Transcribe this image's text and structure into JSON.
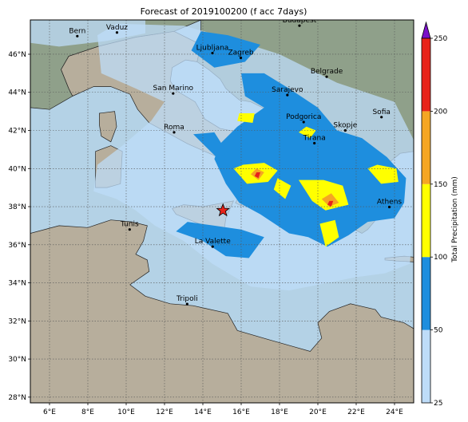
{
  "title": "Forecast of 2019100200 (f acc 7days)",
  "map": {
    "lon_range": [
      5,
      25
    ],
    "lat_range": [
      27.7,
      47.8
    ],
    "lon_ticks": [
      {
        "value": 6,
        "label": "6°E"
      },
      {
        "value": 8,
        "label": "8°E"
      },
      {
        "value": 10,
        "label": "10°E"
      },
      {
        "value": 12,
        "label": "12°E"
      },
      {
        "value": 14,
        "label": "14°E"
      },
      {
        "value": 16,
        "label": "16°E"
      },
      {
        "value": 18,
        "label": "18°E"
      },
      {
        "value": 20,
        "label": "20°E"
      },
      {
        "value": 22,
        "label": "22°E"
      },
      {
        "value": 24,
        "label": "24°E"
      }
    ],
    "lat_ticks": [
      {
        "value": 28,
        "label": "28°N"
      },
      {
        "value": 30,
        "label": "30°N"
      },
      {
        "value": 32,
        "label": "32°N"
      },
      {
        "value": 34,
        "label": "34°N"
      },
      {
        "value": 36,
        "label": "36°N"
      },
      {
        "value": 38,
        "label": "38°N"
      },
      {
        "value": 40,
        "label": "40°N"
      },
      {
        "value": 42,
        "label": "42°N"
      },
      {
        "value": 44,
        "label": "44°N"
      },
      {
        "value": 46,
        "label": "46°N"
      }
    ],
    "grid": true,
    "colors": {
      "sea": "#b4d2e6",
      "land": "#b7ae9c",
      "land_north": "#8fa08a",
      "border": "#222222"
    },
    "cities": [
      {
        "name": "Bern",
        "lon": 7.45,
        "lat": 46.95
      },
      {
        "name": "Vaduz",
        "lon": 9.52,
        "lat": 47.14
      },
      {
        "name": "Budapest",
        "lon": 19.04,
        "lat": 47.5
      },
      {
        "name": "Ljubljana",
        "lon": 14.5,
        "lat": 46.06
      },
      {
        "name": "Zagreb",
        "lon": 15.98,
        "lat": 45.81
      },
      {
        "name": "Belgrade",
        "lon": 20.46,
        "lat": 44.82
      },
      {
        "name": "San Marino",
        "lon": 12.45,
        "lat": 43.94
      },
      {
        "name": "Sarajevo",
        "lon": 18.41,
        "lat": 43.86
      },
      {
        "name": "Sofia",
        "lon": 23.32,
        "lat": 42.7
      },
      {
        "name": "Podgorica",
        "lon": 19.26,
        "lat": 42.44
      },
      {
        "name": "Skopje",
        "lon": 21.43,
        "lat": 42.0
      },
      {
        "name": "Roma",
        "lon": 12.5,
        "lat": 41.9
      },
      {
        "name": "Tirana",
        "lon": 19.82,
        "lat": 41.33
      },
      {
        "name": "Athens",
        "lon": 23.73,
        "lat": 37.98
      },
      {
        "name": "Tunis",
        "lon": 10.18,
        "lat": 36.8
      },
      {
        "name": "La Valette",
        "lon": 14.51,
        "lat": 35.9
      },
      {
        "name": "Tripoli",
        "lon": 13.18,
        "lat": 32.89
      }
    ],
    "marker": {
      "lon": 15.05,
      "lat": 37.8,
      "color": "#e8231a"
    }
  },
  "colorbar": {
    "label": "Total Precipitation (mm)",
    "levels": [
      25,
      50,
      100,
      150,
      200,
      250
    ],
    "colors": [
      "#bedcf8",
      "#1e8ede",
      "#ffff00",
      "#f5a623",
      "#e8231a"
    ],
    "extend_color": "#7a10c8"
  },
  "precip_regions": [
    {
      "level": 1,
      "points": [
        [
          8.3,
          38.8
        ],
        [
          9.5,
          38.4
        ],
        [
          10.5,
          37.8
        ],
        [
          11.5,
          37.0
        ],
        [
          13.0,
          36.2
        ],
        [
          14.5,
          35.0
        ],
        [
          16.5,
          33.8
        ],
        [
          18.5,
          33.6
        ],
        [
          20.5,
          34.0
        ],
        [
          22.0,
          34.3
        ],
        [
          23.5,
          34.5
        ],
        [
          24.8,
          35.0
        ],
        [
          24.9,
          36.3
        ],
        [
          25.0,
          41.5
        ],
        [
          24.0,
          43.5
        ],
        [
          21.0,
          44.5
        ],
        [
          18.0,
          46.0
        ],
        [
          15.5,
          46.8
        ],
        [
          13.0,
          47.5
        ],
        [
          9.5,
          47.6
        ],
        [
          8.5,
          47.0
        ],
        [
          8.7,
          45.0
        ],
        [
          10.5,
          44.2
        ],
        [
          12.0,
          43.5
        ],
        [
          11.3,
          42.5
        ],
        [
          9.8,
          41.2
        ],
        [
          8.5,
          40.2
        ]
      ]
    },
    {
      "level": 1,
      "points": [
        [
          5.0,
          47.8
        ],
        [
          11.0,
          47.8
        ],
        [
          11.0,
          47.1
        ],
        [
          9.0,
          46.7
        ],
        [
          6.5,
          46.4
        ],
        [
          5.0,
          46.6
        ]
      ]
    },
    {
      "level": 2,
      "points": [
        [
          14.6,
          40.5
        ],
        [
          15.2,
          39.2
        ],
        [
          15.9,
          38.2
        ],
        [
          17.0,
          37.6
        ],
        [
          18.5,
          36.6
        ],
        [
          19.5,
          36.4
        ],
        [
          20.5,
          35.9
        ],
        [
          21.6,
          36.5
        ],
        [
          22.6,
          37.2
        ],
        [
          24.0,
          37.4
        ],
        [
          24.5,
          38.2
        ],
        [
          24.6,
          39.5
        ],
        [
          23.6,
          40.6
        ],
        [
          22.3,
          41.6
        ],
        [
          21.0,
          42.0
        ],
        [
          20.0,
          43.2
        ],
        [
          18.5,
          44.2
        ],
        [
          17.2,
          45.0
        ],
        [
          16.0,
          45.0
        ],
        [
          16.2,
          43.8
        ],
        [
          17.2,
          43.2
        ],
        [
          15.8,
          42.2
        ],
        [
          14.9,
          41.3
        ]
      ]
    },
    {
      "level": 2,
      "points": [
        [
          12.6,
          36.7
        ],
        [
          14.0,
          36.2
        ],
        [
          15.2,
          35.4
        ],
        [
          16.4,
          35.3
        ],
        [
          17.2,
          36.4
        ],
        [
          16.0,
          36.8
        ],
        [
          14.6,
          37.0
        ],
        [
          13.2,
          37.2
        ]
      ]
    },
    {
      "level": 2,
      "points": [
        [
          13.4,
          46.2
        ],
        [
          14.6,
          45.3
        ],
        [
          16.2,
          45.6
        ],
        [
          17.0,
          46.5
        ],
        [
          15.3,
          47.0
        ],
        [
          13.9,
          47.2
        ]
      ]
    },
    {
      "level": 2,
      "points": [
        [
          13.5,
          41.8
        ],
        [
          14.7,
          40.6
        ],
        [
          15.3,
          40.8
        ],
        [
          14.6,
          41.9
        ]
      ]
    },
    {
      "level": 3,
      "points": [
        [
          15.6,
          40.0
        ],
        [
          16.3,
          39.2
        ],
        [
          17.4,
          39.3
        ],
        [
          17.9,
          39.9
        ],
        [
          17.2,
          40.3
        ],
        [
          16.1,
          40.2
        ]
      ]
    },
    {
      "level": 3,
      "points": [
        [
          19.0,
          39.4
        ],
        [
          19.7,
          38.3
        ],
        [
          20.4,
          37.8
        ],
        [
          21.6,
          38.1
        ],
        [
          21.3,
          39.1
        ],
        [
          20.3,
          39.4
        ]
      ]
    },
    {
      "level": 3,
      "points": [
        [
          22.6,
          40.0
        ],
        [
          23.3,
          39.2
        ],
        [
          24.2,
          39.3
        ],
        [
          24.1,
          40.0
        ],
        [
          23.1,
          40.2
        ]
      ]
    },
    {
      "level": 3,
      "points": [
        [
          20.1,
          37.1
        ],
        [
          20.4,
          35.9
        ],
        [
          21.1,
          36.4
        ],
        [
          20.9,
          37.3
        ]
      ]
    },
    {
      "level": 3,
      "points": [
        [
          17.7,
          38.9
        ],
        [
          18.3,
          38.4
        ],
        [
          18.6,
          39.1
        ],
        [
          17.9,
          39.5
        ]
      ]
    },
    {
      "level": 3,
      "points": [
        [
          19.0,
          41.9
        ],
        [
          19.6,
          41.6
        ],
        [
          19.9,
          42.0
        ],
        [
          19.4,
          42.2
        ]
      ]
    },
    {
      "level": 3,
      "points": [
        [
          15.8,
          42.5
        ],
        [
          16.6,
          42.4
        ],
        [
          16.7,
          42.9
        ],
        [
          15.9,
          42.9
        ]
      ]
    },
    {
      "level": 4,
      "points": [
        [
          16.5,
          39.7
        ],
        [
          16.9,
          39.4
        ],
        [
          17.2,
          39.8
        ],
        [
          16.8,
          40.0
        ]
      ]
    },
    {
      "level": 4,
      "points": [
        [
          20.2,
          38.4
        ],
        [
          20.6,
          38.0
        ],
        [
          21.1,
          38.2
        ],
        [
          20.7,
          38.7
        ]
      ]
    },
    {
      "level": 5,
      "points": [
        [
          16.7,
          39.6
        ],
        [
          16.9,
          39.5
        ],
        [
          17.0,
          39.8
        ],
        [
          16.8,
          39.8
        ]
      ]
    },
    {
      "level": 5,
      "points": [
        [
          20.5,
          38.1
        ],
        [
          20.7,
          38.0
        ],
        [
          20.8,
          38.3
        ],
        [
          20.6,
          38.3
        ]
      ]
    }
  ],
  "land_polygons": [
    {
      "name": "africa",
      "points": [
        [
          5.0,
          36.6
        ],
        [
          6.5,
          37.0
        ],
        [
          8.0,
          36.9
        ],
        [
          9.2,
          37.3
        ],
        [
          10.3,
          37.2
        ],
        [
          11.1,
          37.0
        ],
        [
          10.9,
          36.2
        ],
        [
          10.5,
          35.5
        ],
        [
          11.1,
          35.2
        ],
        [
          11.2,
          34.6
        ],
        [
          10.2,
          33.9
        ],
        [
          11.0,
          33.3
        ],
        [
          12.3,
          32.9
        ],
        [
          13.5,
          32.8
        ],
        [
          15.3,
          32.4
        ],
        [
          15.8,
          31.5
        ],
        [
          17.5,
          31.0
        ],
        [
          18.9,
          30.6
        ],
        [
          19.6,
          30.4
        ],
        [
          20.2,
          31.1
        ],
        [
          20.0,
          31.9
        ],
        [
          20.6,
          32.5
        ],
        [
          21.7,
          32.9
        ],
        [
          23.0,
          32.6
        ],
        [
          23.3,
          32.2
        ],
        [
          24.5,
          31.9
        ],
        [
          25.0,
          31.6
        ],
        [
          25.0,
          27.7
        ],
        [
          5.0,
          27.7
        ]
      ]
    },
    {
      "name": "italy",
      "points": [
        [
          7.2,
          43.8
        ],
        [
          8.3,
          44.3
        ],
        [
          9.2,
          44.3
        ],
        [
          10.2,
          43.9
        ],
        [
          10.6,
          43.1
        ],
        [
          11.2,
          42.4
        ],
        [
          12.3,
          41.8
        ],
        [
          13.2,
          41.3
        ],
        [
          14.1,
          40.9
        ],
        [
          14.8,
          40.6
        ],
        [
          15.4,
          40.0
        ],
        [
          15.8,
          39.4
        ],
        [
          16.1,
          38.9
        ],
        [
          15.7,
          38.2
        ],
        [
          16.1,
          38.0
        ],
        [
          16.6,
          38.5
        ],
        [
          17.1,
          39.0
        ],
        [
          17.1,
          39.4
        ],
        [
          16.5,
          39.8
        ],
        [
          16.8,
          40.4
        ],
        [
          17.6,
          40.3
        ],
        [
          18.4,
          40.1
        ],
        [
          18.5,
          40.4
        ],
        [
          17.9,
          40.7
        ],
        [
          16.9,
          41.2
        ],
        [
          16.0,
          41.5
        ],
        [
          15.9,
          41.9
        ],
        [
          14.9,
          42.1
        ],
        [
          14.1,
          42.6
        ],
        [
          13.6,
          43.5
        ],
        [
          12.6,
          44.1
        ],
        [
          12.3,
          44.6
        ],
        [
          12.4,
          45.3
        ],
        [
          13.1,
          45.7
        ],
        [
          13.7,
          45.6
        ],
        [
          13.9,
          46.5
        ],
        [
          12.5,
          47.2
        ],
        [
          10.5,
          46.9
        ],
        [
          8.5,
          46.4
        ],
        [
          7.0,
          45.9
        ],
        [
          6.6,
          45.2
        ],
        [
          7.0,
          44.2
        ]
      ]
    },
    {
      "name": "balkans",
      "points": [
        [
          13.7,
          45.6
        ],
        [
          14.3,
          45.2
        ],
        [
          14.9,
          44.7
        ],
        [
          15.2,
          44.2
        ],
        [
          15.9,
          43.6
        ],
        [
          16.5,
          43.5
        ],
        [
          17.5,
          43.0
        ],
        [
          18.5,
          42.5
        ],
        [
          19.4,
          41.9
        ],
        [
          19.5,
          41.3
        ],
        [
          19.4,
          40.5
        ],
        [
          19.9,
          40.0
        ],
        [
          20.2,
          39.6
        ],
        [
          20.7,
          39.1
        ],
        [
          21.1,
          38.4
        ],
        [
          21.6,
          38.3
        ],
        [
          21.2,
          37.7
        ],
        [
          21.7,
          36.9
        ],
        [
          22.3,
          36.6
        ],
        [
          22.6,
          36.8
        ],
        [
          23.1,
          37.4
        ],
        [
          22.9,
          37.9
        ],
        [
          23.5,
          38.0
        ],
        [
          24.1,
          38.2
        ],
        [
          23.8,
          38.7
        ],
        [
          23.0,
          39.0
        ],
        [
          22.8,
          39.6
        ],
        [
          22.5,
          40.2
        ],
        [
          22.9,
          40.5
        ],
        [
          23.7,
          40.3
        ],
        [
          24.3,
          40.8
        ],
        [
          25.0,
          40.9
        ],
        [
          25.0,
          47.8
        ],
        [
          13.9,
          47.8
        ],
        [
          13.9,
          46.5
        ]
      ]
    },
    {
      "name": "sicily",
      "points": [
        [
          12.4,
          37.9
        ],
        [
          13.0,
          38.1
        ],
        [
          14.0,
          38.0
        ],
        [
          15.6,
          38.3
        ],
        [
          15.2,
          37.4
        ],
        [
          15.1,
          36.7
        ],
        [
          14.3,
          36.9
        ],
        [
          12.6,
          37.6
        ]
      ]
    },
    {
      "name": "sardinia",
      "points": [
        [
          8.4,
          40.9
        ],
        [
          9.2,
          41.2
        ],
        [
          9.8,
          40.9
        ],
        [
          9.7,
          39.2
        ],
        [
          9.0,
          39.0
        ],
        [
          8.4,
          39.0
        ],
        [
          8.4,
          39.9
        ]
      ]
    },
    {
      "name": "corsica",
      "points": [
        [
          8.6,
          42.9
        ],
        [
          9.4,
          43.0
        ],
        [
          9.5,
          42.2
        ],
        [
          9.2,
          41.4
        ],
        [
          8.7,
          41.7
        ],
        [
          8.6,
          42.3
        ]
      ]
    },
    {
      "name": "europe-west",
      "points": [
        [
          5.0,
          43.2
        ],
        [
          6.0,
          43.1
        ],
        [
          7.2,
          43.8
        ],
        [
          7.0,
          44.2
        ],
        [
          6.6,
          45.2
        ],
        [
          7.0,
          45.9
        ],
        [
          8.5,
          46.4
        ],
        [
          10.5,
          46.9
        ],
        [
          12.5,
          47.2
        ],
        [
          13.9,
          47.8
        ],
        [
          5.0,
          47.8
        ]
      ]
    },
    {
      "name": "crete",
      "points": [
        [
          23.5,
          35.3
        ],
        [
          24.5,
          35.4
        ],
        [
          25.0,
          35.35
        ],
        [
          25.0,
          35.1
        ],
        [
          24.1,
          35.15
        ],
        [
          23.5,
          35.2
        ]
      ]
    }
  ]
}
